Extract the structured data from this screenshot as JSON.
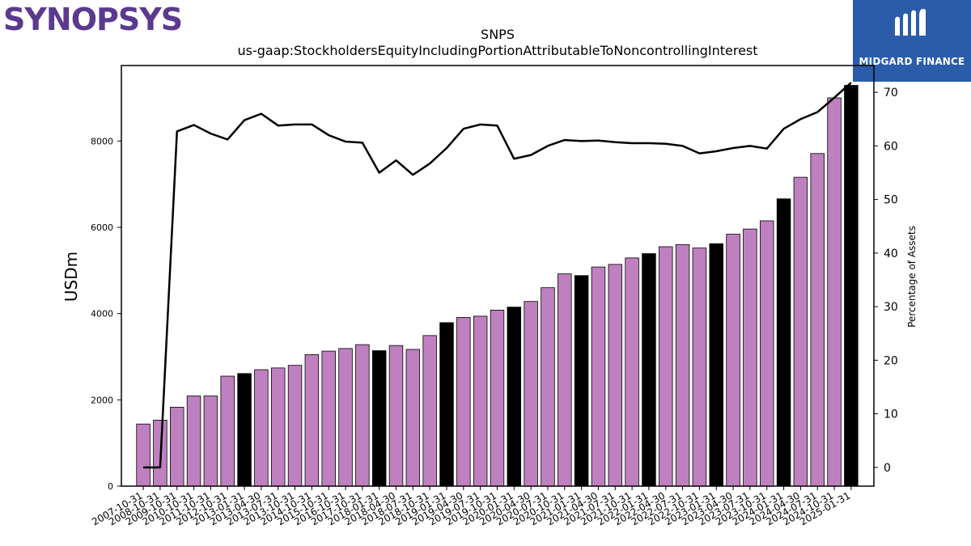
{
  "brand": {
    "left_logo": "SYNOPSYS",
    "right_logo": "MIDGARD FINANCE"
  },
  "colors": {
    "bar": "#bf80bf",
    "bar_highlight": "#000000",
    "line": "#000000",
    "logo_left": "#5b3a8e",
    "logo_right_bg": "#2b5caa"
  },
  "chart_data": {
    "type": "bar",
    "title": "SNPS",
    "subtitle": "us-gaap:StockholdersEquityIncludingPortionAttributableToNoncontrollingInterest",
    "ylabel": "USDm",
    "y2label": "Percentage of Assets",
    "ylim": [
      0,
      9750
    ],
    "y2lim": [
      -3.5,
      75
    ],
    "yticks": [
      0,
      2000,
      4000,
      6000,
      8000
    ],
    "y2ticks": [
      0,
      10,
      20,
      30,
      40,
      50,
      60,
      70
    ],
    "categories": [
      "2007-10-31",
      "2008-10-31",
      "2009-10-31",
      "2010-10-31",
      "2011-10-31",
      "2012-10-31",
      "2013-01-31",
      "2013-04-30",
      "2013-07-31",
      "2013-10-31",
      "2014-10-31",
      "2015-10-31",
      "2016-10-31",
      "2017-10-31",
      "2018-01-31",
      "2018-04-30",
      "2018-07-31",
      "2018-10-31",
      "2019-01-31",
      "2019-04-30",
      "2019-07-31",
      "2019-10-31",
      "2020-01-31",
      "2020-04-30",
      "2020-07-31",
      "2020-10-31",
      "2021-01-31",
      "2021-04-30",
      "2021-07-31",
      "2021-10-31",
      "2022-01-31",
      "2022-04-30",
      "2022-07-31",
      "2022-10-31",
      "2023-01-31",
      "2023-04-30",
      "2023-07-31",
      "2023-10-31",
      "2024-01-31",
      "2024-04-30",
      "2024-07-31",
      "2024-10-31",
      "2025-01-31"
    ],
    "tick_labels": [
      "2007-10-31",
      "2008-10-31",
      "2009-10-31",
      "2010-10-31",
      "2011-10-31",
      "2012-10-31",
      "2013-01-31",
      "2013-04-30",
      "2013-07-31",
      "2013-10-31",
      "2014-10-31",
      "2015-10-31",
      "2016-10-31",
      "2017-10-31",
      "2018-01-31",
      "2018-04-30",
      "2018-07-31",
      "2018-10-31",
      "2019-01-31",
      "2019-04-30",
      "2019-07-31",
      "2019-10-31",
      "2020-01-31",
      "2020-04-30",
      "2020-07-31",
      "2020-10-31",
      "2021-01-31",
      "2021-04-30",
      "2021-07-31",
      "2021-10-31",
      "2022-01-31",
      "2022-04-30",
      "2022-07-31",
      "2022-10-31",
      "2023-01-31",
      "2023-04-30",
      "2023-07-31",
      "2023-10-31",
      "2024-01-31",
      "2024-04-30",
      "2024-07-31",
      "2024-10-31",
      "2025-01-31"
    ],
    "series": [
      {
        "kind": "bar",
        "axis": "left",
        "values": [
          1440,
          1530,
          1830,
          2090,
          2090,
          2550,
          2610,
          2700,
          2740,
          2800,
          3050,
          3130,
          3190,
          3280,
          3140,
          3260,
          3170,
          3490,
          3790,
          3910,
          3940,
          4080,
          4150,
          4280,
          4600,
          4920,
          4880,
          5080,
          5140,
          5290,
          5390,
          5550,
          5600,
          5520,
          5620,
          5840,
          5960,
          6150,
          6660,
          7160,
          7710,
          9000,
          9290
        ],
        "highlighted": [
          false,
          false,
          false,
          false,
          false,
          false,
          true,
          false,
          false,
          false,
          false,
          false,
          false,
          false,
          true,
          false,
          false,
          false,
          true,
          false,
          false,
          false,
          true,
          false,
          false,
          false,
          true,
          false,
          false,
          false,
          true,
          false,
          false,
          false,
          true,
          false,
          false,
          false,
          true,
          false,
          false,
          false,
          true
        ]
      },
      {
        "kind": "line",
        "axis": "right",
        "values": [
          0,
          0,
          62.7,
          63.9,
          62.3,
          61.2,
          64.8,
          66.0,
          63.8,
          64.0,
          64.0,
          62.0,
          60.8,
          60.6,
          55.0,
          57.3,
          54.6,
          56.7,
          59.6,
          63.2,
          64.0,
          63.8,
          57.6,
          58.3,
          60.0,
          61.1,
          60.9,
          61.0,
          60.7,
          60.5,
          60.5,
          60.4,
          60.0,
          58.6,
          59.0,
          59.6,
          60.0,
          59.5,
          63.2,
          65.0,
          66.3,
          69.0,
          71.8
        ]
      }
    ]
  }
}
